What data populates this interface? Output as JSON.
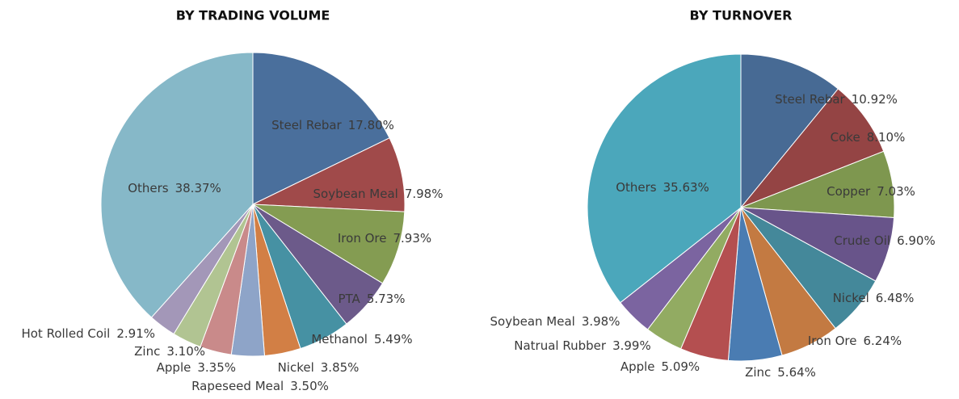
{
  "chart_data": [
    {
      "type": "pie",
      "title": "BY TRADING VOLUME",
      "categories": [
        "Steel Rebar",
        "Soybean Meal",
        "Iron Ore",
        "PTA",
        "Methanol",
        "Nickel",
        "Rapeseed Meal",
        "Apple",
        "Zinc",
        "Hot Rolled Coil",
        "Others"
      ],
      "values": [
        17.8,
        7.98,
        7.93,
        5.73,
        5.49,
        3.85,
        3.5,
        3.35,
        3.1,
        2.91,
        38.37
      ],
      "value_labels": [
        "17.80%",
        "7.98%",
        "7.93%",
        "5.73%",
        "5.49%",
        "3.85%",
        "3.50%",
        "3.35%",
        "3.10%",
        "2.91%",
        "38.37%"
      ],
      "colors": [
        "#4a6f9c",
        "#a04a4a",
        "#849c52",
        "#6c5a8a",
        "#4691a3",
        "#d27f45",
        "#8ea4c8",
        "#c98a8a",
        "#b1c492",
        "#a397b8",
        "#86b8c8"
      ]
    },
    {
      "type": "pie",
      "title": "BY TURNOVER",
      "categories": [
        "Steel Rebar",
        "Coke",
        "Copper",
        "Crude Oil",
        "Nickel",
        "Iron Ore",
        "Zinc",
        "Apple",
        "Natrual Rubber",
        "Soybean Meal",
        "Others"
      ],
      "values": [
        10.92,
        8.1,
        7.03,
        6.9,
        6.48,
        6.24,
        5.64,
        5.09,
        3.99,
        3.98,
        35.63
      ],
      "value_labels": [
        "10.92%",
        "8.10%",
        "7.03%",
        "6.90%",
        "6.48%",
        "6.24%",
        "5.64%",
        "5.09%",
        "3.99%",
        "3.98%",
        "35.63%"
      ],
      "colors": [
        "#476a94",
        "#944444",
        "#7e974f",
        "#68548a",
        "#44889a",
        "#c37a42",
        "#4a7cb2",
        "#b44f50",
        "#92ab62",
        "#7b64a0",
        "#4ba7bb"
      ]
    }
  ]
}
